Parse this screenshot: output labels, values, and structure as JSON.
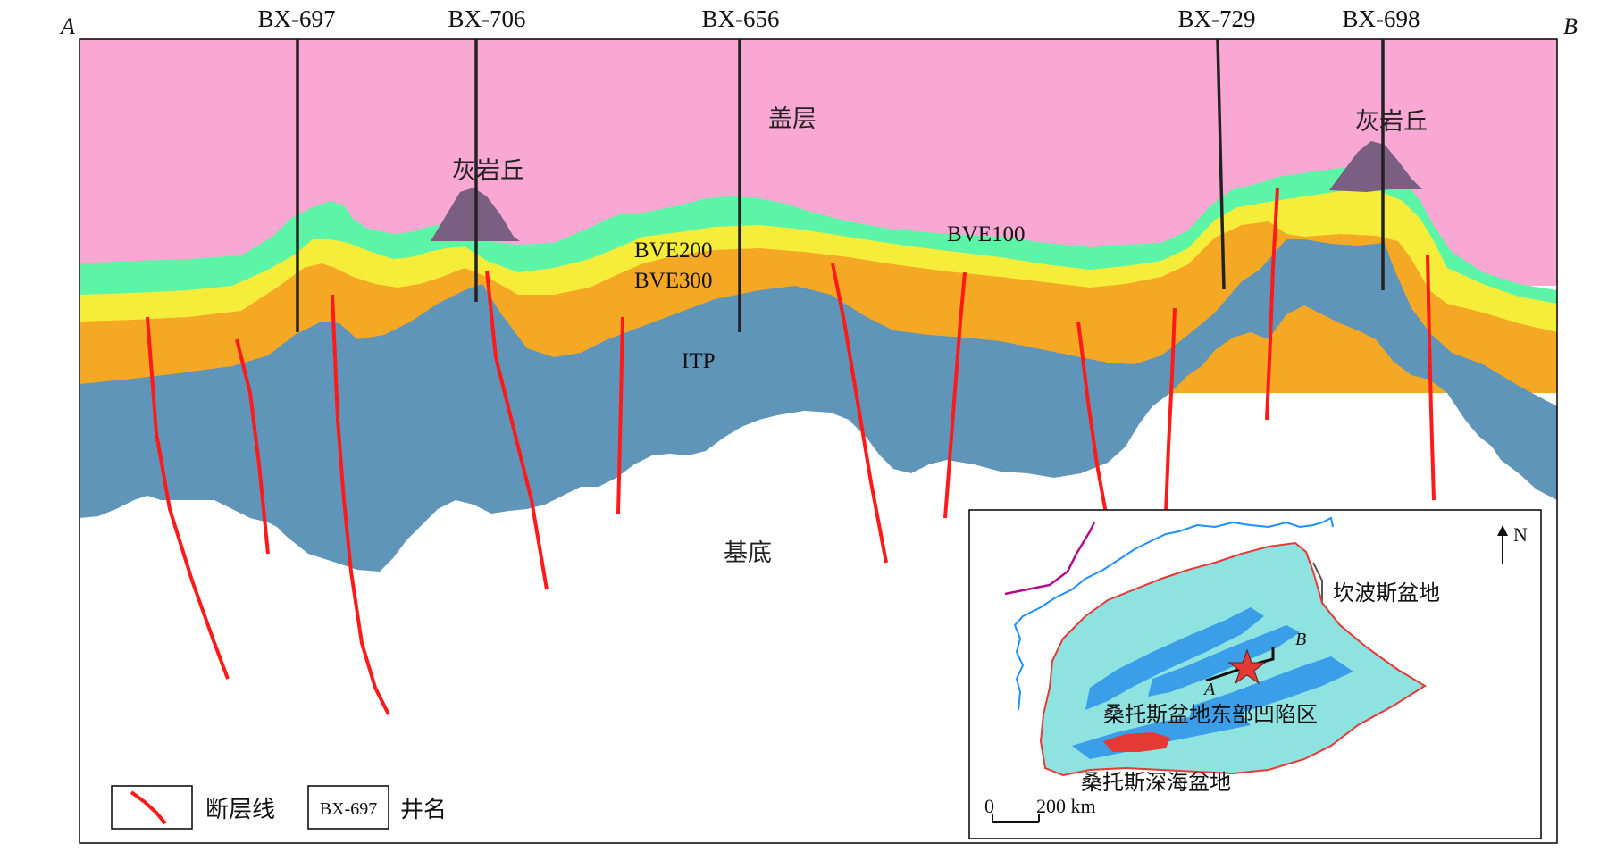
{
  "section": {
    "end_labels": {
      "start": "A",
      "end": "B"
    },
    "wells": [
      "BX-697",
      "BX-706",
      "BX-656",
      "BX-729",
      "BX-698"
    ],
    "layers": {
      "cap": "盖层",
      "bve100": "BVE100",
      "bve200": "BVE200",
      "bve300": "BVE300",
      "itp": "ITP",
      "basement": "基底"
    },
    "mounds": [
      "灰岩丘",
      "灰岩丘"
    ]
  },
  "colors": {
    "cap": "#f9a8d4",
    "bve100": "#5cf5a8",
    "bve200": "#f6ec3a",
    "bve300": "#f5a823",
    "itp": "#5e95b9",
    "mound": "#7a5f82",
    "fault": "#ff1a1a",
    "coastline": "#1e90ff",
    "basin_fill": "#8ee3e0",
    "depression": "#3a9ee8",
    "deep_basin": "#e53935",
    "border": "#b00c8c"
  },
  "legend": {
    "fault_label": "断层线",
    "well_box": "BX-697",
    "well_label": "井名"
  },
  "inset": {
    "north": "N",
    "campos": "坎波斯盆地",
    "eastern_depression": "桑托斯盆地东部凹陷区",
    "deep_basin": "桑托斯深海盆地",
    "scale_zero": "0",
    "scale_value": "200 km",
    "line_start": "A",
    "line_end": "B"
  }
}
